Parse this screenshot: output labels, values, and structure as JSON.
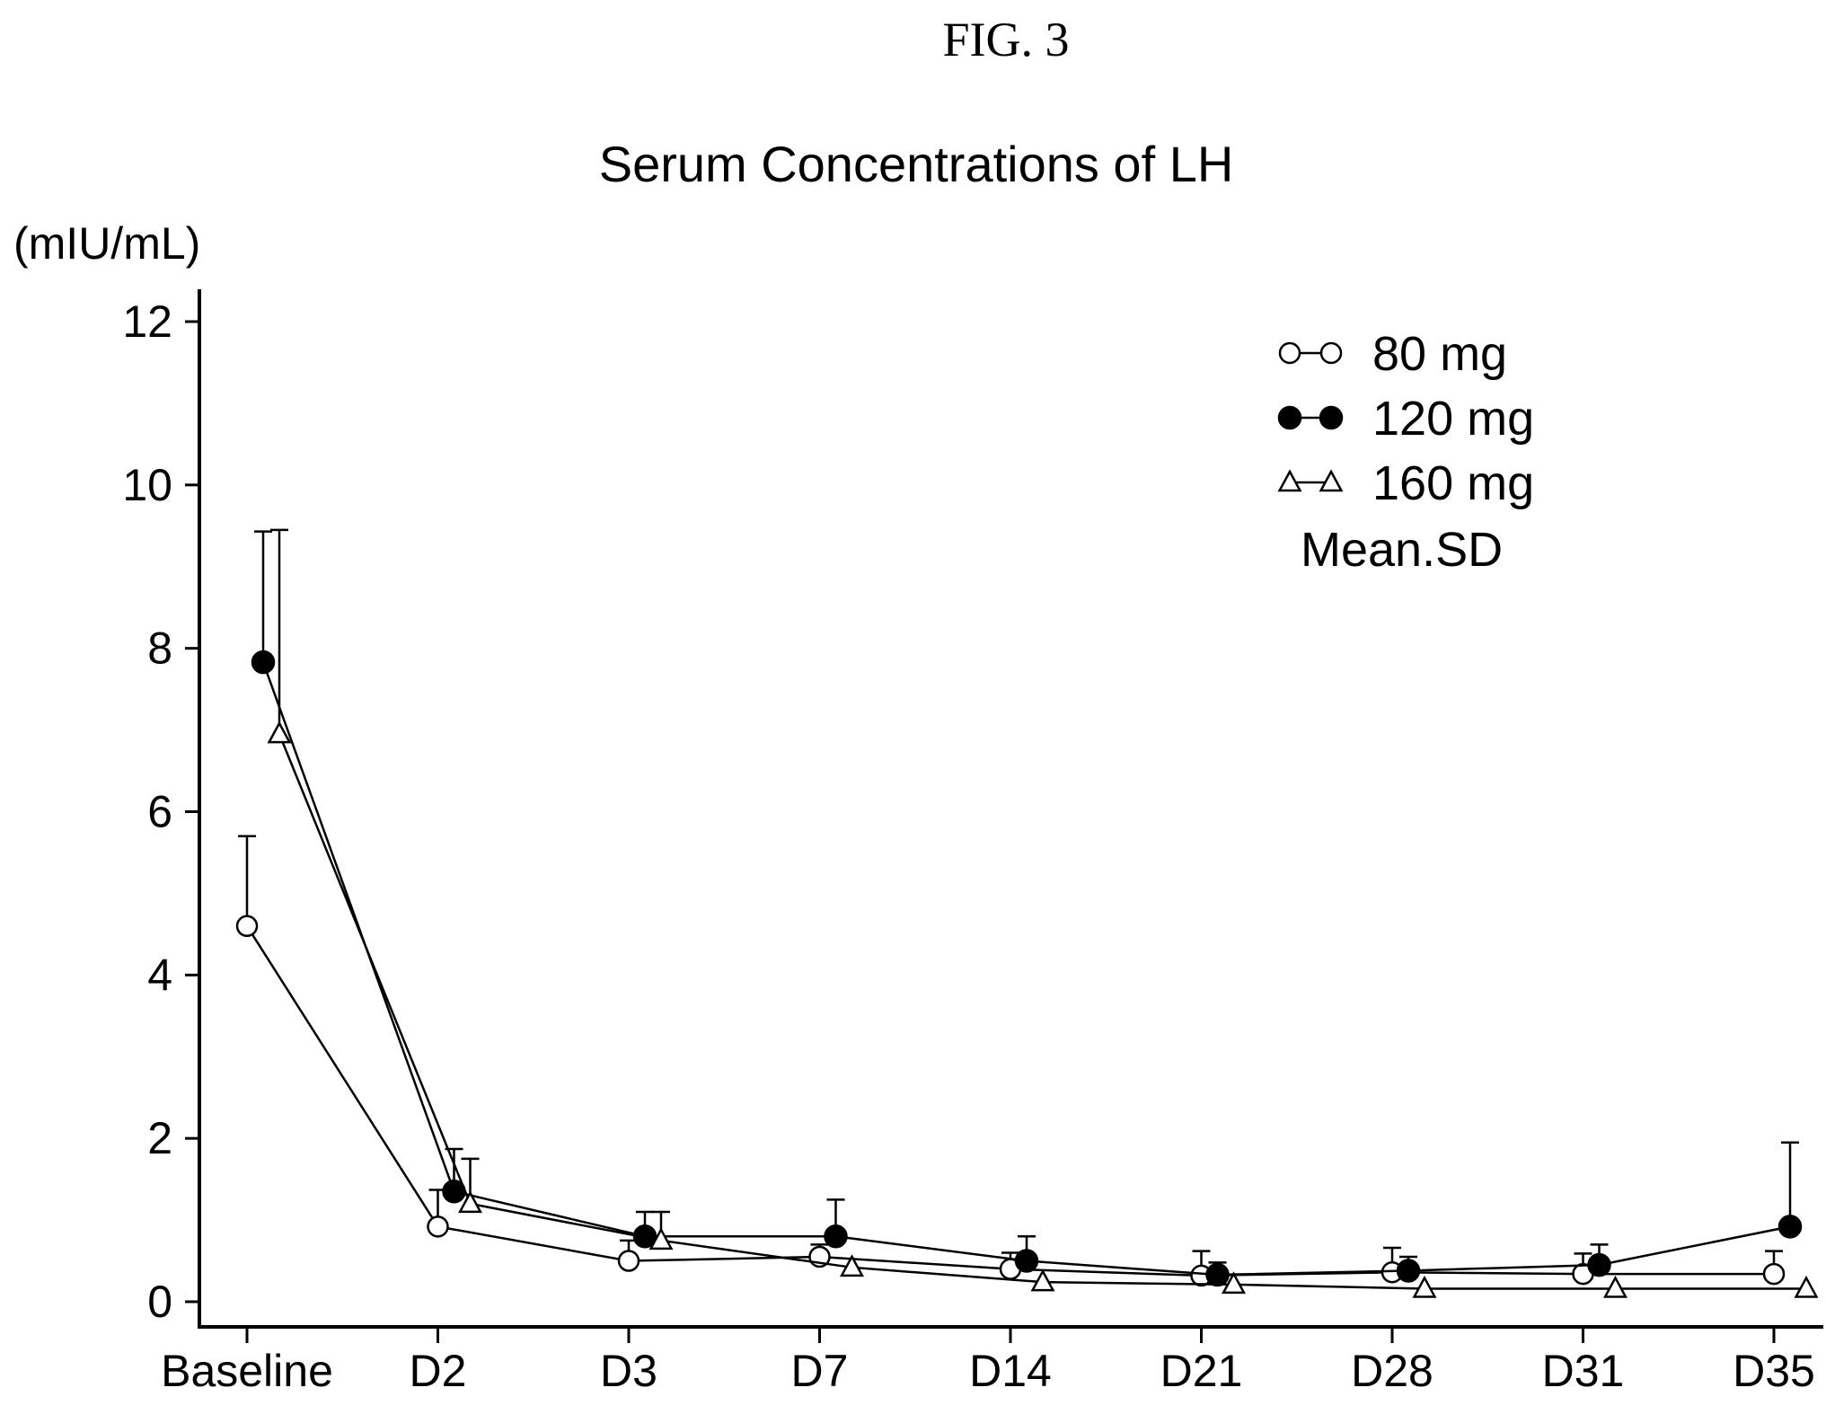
{
  "figure_label": "FIG. 3",
  "chart_data": {
    "type": "line",
    "title": "Serum Concentrations of LH",
    "ylabel": "(mIU/mL)",
    "xlabel": "",
    "categories": [
      "Baseline",
      "D2",
      "D3",
      "D7",
      "D14",
      "D21",
      "D28",
      "D31",
      "D35"
    ],
    "ylim": [
      0,
      12
    ],
    "yticks": [
      0,
      2,
      4,
      6,
      8,
      10,
      12
    ],
    "grid": false,
    "legend_position": "top-right",
    "legend_note": "Mean.SD",
    "series": [
      {
        "name": "80 mg",
        "marker": "open-circle",
        "values": [
          4.6,
          0.92,
          0.5,
          0.55,
          0.4,
          0.32,
          0.36,
          0.34,
          0.34
        ],
        "sd": [
          1.1,
          0.45,
          0.25,
          0.15,
          0.2,
          0.3,
          0.3,
          0.25,
          0.28
        ]
      },
      {
        "name": "120 mg",
        "marker": "filled-circle",
        "values": [
          7.83,
          1.35,
          0.8,
          0.8,
          0.5,
          0.33,
          0.38,
          0.45,
          0.92
        ],
        "sd": [
          1.6,
          0.52,
          0.3,
          0.45,
          0.3,
          0.15,
          0.17,
          0.25,
          1.03
        ]
      },
      {
        "name": "160 mg",
        "marker": "open-triangle",
        "values": [
          6.95,
          1.2,
          0.75,
          0.42,
          0.24,
          0.21,
          0.16,
          0.16,
          0.16
        ],
        "sd": [
          2.5,
          0.55,
          0.35,
          0.0,
          0.0,
          0.0,
          0.0,
          0.0,
          0.0
        ]
      }
    ],
    "colors": {
      "line": "#000000",
      "background": "#ffffff"
    }
  }
}
